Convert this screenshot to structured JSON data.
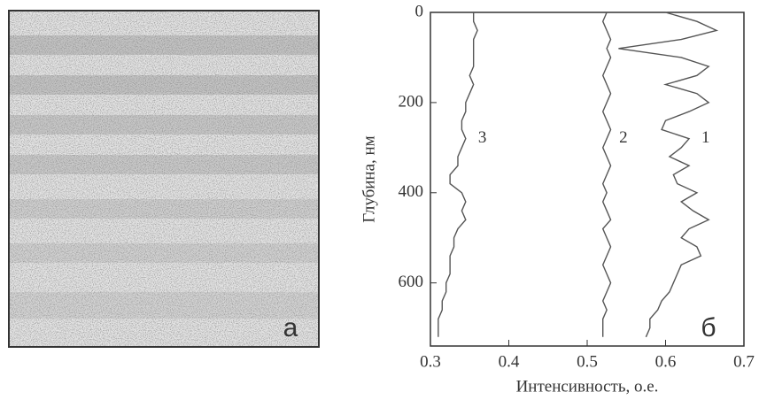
{
  "panels": {
    "left_label": "а"
  },
  "chart_data": {
    "type": "line",
    "panel_label": "б",
    "x_label": "Интенсивность, о.е.",
    "y_label": "Глубина, нм",
    "xlim": [
      0.3,
      0.7
    ],
    "xticks": [
      0.3,
      0.4,
      0.5,
      0.6,
      0.7
    ],
    "ylim": [
      0,
      740
    ],
    "yticks": [
      0,
      200,
      400,
      600
    ],
    "y_inverted": true,
    "color": "#555555",
    "depths": [
      0,
      20,
      40,
      60,
      80,
      100,
      120,
      140,
      160,
      180,
      200,
      220,
      240,
      260,
      280,
      300,
      320,
      340,
      360,
      380,
      400,
      420,
      440,
      460,
      480,
      500,
      520,
      540,
      560,
      580,
      600,
      620,
      640,
      660,
      680,
      700,
      720
    ],
    "series": [
      {
        "name": "1",
        "label_depth": 280,
        "values": [
          0.6,
          0.64,
          0.665,
          0.62,
          0.54,
          0.62,
          0.655,
          0.64,
          0.6,
          0.64,
          0.655,
          0.63,
          0.6,
          0.595,
          0.63,
          0.62,
          0.605,
          0.63,
          0.61,
          0.615,
          0.64,
          0.62,
          0.635,
          0.655,
          0.63,
          0.62,
          0.64,
          0.645,
          0.62,
          0.615,
          0.61,
          0.605,
          0.595,
          0.59,
          0.58,
          0.58,
          0.575
        ]
      },
      {
        "name": "2",
        "label_depth": 280,
        "values": [
          0.525,
          0.52,
          0.525,
          0.53,
          0.525,
          0.53,
          0.525,
          0.52,
          0.525,
          0.53,
          0.525,
          0.52,
          0.525,
          0.53,
          0.525,
          0.52,
          0.525,
          0.53,
          0.525,
          0.52,
          0.525,
          0.52,
          0.525,
          0.53,
          0.52,
          0.525,
          0.53,
          0.525,
          0.52,
          0.525,
          0.53,
          0.525,
          0.52,
          0.525,
          0.52,
          0.52,
          0.52
        ]
      },
      {
        "name": "3",
        "label_depth": 280,
        "values": [
          0.355,
          0.355,
          0.36,
          0.355,
          0.355,
          0.355,
          0.355,
          0.35,
          0.355,
          0.35,
          0.345,
          0.345,
          0.34,
          0.34,
          0.345,
          0.34,
          0.335,
          0.335,
          0.325,
          0.325,
          0.34,
          0.345,
          0.34,
          0.345,
          0.335,
          0.33,
          0.33,
          0.325,
          0.325,
          0.325,
          0.32,
          0.32,
          0.315,
          0.315,
          0.31,
          0.31,
          0.31
        ]
      }
    ]
  }
}
